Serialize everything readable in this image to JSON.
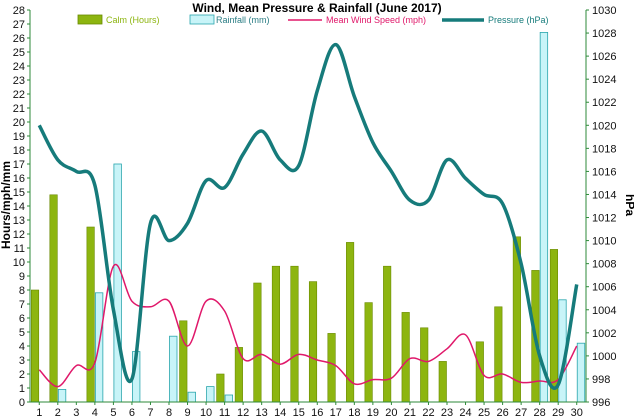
{
  "chart_data": {
    "type": "bar",
    "title": "Wind, Mean Pressure & Rainfall (June 2017)",
    "ylabel": "Hours/mph/mm",
    "y2label": "hPa",
    "ylim": [
      0,
      28
    ],
    "y2lim": [
      996,
      1030
    ],
    "categories": [
      "1",
      "2",
      "3",
      "4",
      "5",
      "6",
      "7",
      "8",
      "9",
      "10",
      "11",
      "12",
      "13",
      "14",
      "15",
      "16",
      "17",
      "18",
      "19",
      "20",
      "21",
      "22",
      "23",
      "24",
      "25",
      "26",
      "27",
      "28",
      "29",
      "30"
    ],
    "series": [
      {
        "name": "Calm (Hours)",
        "type": "bar",
        "axis": "left",
        "color": "#8db510",
        "values": [
          8,
          14.8,
          0,
          12.5,
          0,
          0,
          0,
          0,
          5.8,
          0,
          2,
          3.9,
          8.5,
          9.7,
          9.7,
          8.6,
          4.9,
          11.4,
          7.1,
          9.7,
          6.4,
          5.3,
          2.9,
          0,
          4.3,
          6.8,
          11.8,
          9.4,
          10.9,
          0
        ]
      },
      {
        "name": "Rainfall (mm)",
        "type": "bar",
        "axis": "left",
        "color": "#c8f4f8",
        "values": [
          0,
          0.9,
          0,
          7.8,
          17,
          3.6,
          0,
          4.7,
          0.7,
          1.1,
          0.5,
          0,
          0,
          0,
          0,
          0,
          0,
          0,
          0,
          0,
          0,
          0,
          0,
          0,
          0,
          0,
          0,
          26.4,
          7.3,
          4.2
        ]
      },
      {
        "name": "Mean Wind Speed (mph)",
        "type": "line",
        "axis": "left",
        "color": "#e0186a",
        "values": [
          2.3,
          1.1,
          2.6,
          2.8,
          9.7,
          7.2,
          6.8,
          7.2,
          4,
          7.2,
          6.5,
          3.1,
          3.4,
          2.7,
          3.4,
          3.0,
          2.6,
          1.3,
          1.6,
          1.7,
          3.1,
          2.9,
          3.8,
          4.8,
          1.9,
          2.0,
          1.4,
          1.5,
          1.6,
          4.0
        ]
      },
      {
        "name": "Pressure (hPa)",
        "type": "line",
        "axis": "right",
        "color": "#167b7b",
        "values": [
          1020,
          1017,
          1016,
          1014.8,
          1004,
          998,
          1011.5,
          1010,
          1011.5,
          1015.2,
          1014.6,
          1017.5,
          1019.5,
          1017,
          1016.5,
          1023,
          1027,
          1022.5,
          1018.5,
          1016,
          1013.5,
          1013.5,
          1017,
          1015.4,
          1014,
          1013.2,
          1008,
          1000,
          997.5,
          1006.2
        ]
      }
    ],
    "yticks": [
      "0",
      "1",
      "2",
      "3",
      "4",
      "5",
      "6",
      "7",
      "8",
      "9",
      "10",
      "11",
      "12",
      "13",
      "14",
      "15",
      "16",
      "17",
      "18",
      "19",
      "20",
      "21",
      "22",
      "23",
      "24",
      "25",
      "26",
      "27",
      "28"
    ],
    "y2ticks": [
      "996",
      "998",
      "1000",
      "1002",
      "1004",
      "1006",
      "1008",
      "1010",
      "1012",
      "1014",
      "1016",
      "1018",
      "1020",
      "1022",
      "1024",
      "1026",
      "1028",
      "1030"
    ],
    "grid": false,
    "legend": "top"
  }
}
